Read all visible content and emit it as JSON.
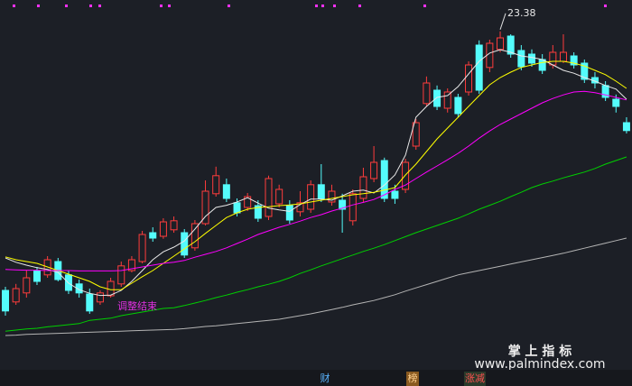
{
  "chart_data": {
    "type": "candlestick",
    "ylim": [
      13.55,
      24.25
    ],
    "up_color": "#ff3c3c",
    "down_color": "#54fcfc",
    "candles": {
      "open": [
        16.2,
        15.88,
        16.13,
        16.75,
        16.63,
        17.0,
        16.63,
        16.38,
        16.1,
        15.88,
        16.05,
        16.38,
        16.75,
        17.0,
        17.8,
        17.7,
        17.88,
        17.8,
        17.38,
        18.05,
        18.88,
        19.13,
        18.63,
        18.5,
        18.55,
        18.25,
        18.6,
        18.55,
        18.38,
        18.45,
        19.13,
        18.65,
        18.7,
        18.13,
        18.75,
        19.3,
        19.8,
        18.95,
        19.0,
        20.2,
        21.38,
        21.75,
        21.25,
        21.55,
        21.7,
        23.0,
        22.38,
        22.88,
        23.25,
        22.85,
        22.75,
        22.6,
        22.45,
        22.55,
        22.7,
        22.5,
        22.1,
        21.88,
        21.5,
        20.85
      ],
      "high": [
        16.3,
        16.38,
        16.75,
        16.85,
        17.15,
        17.1,
        16.75,
        16.5,
        16.25,
        16.2,
        16.55,
        17.0,
        17.15,
        17.85,
        17.95,
        18.2,
        18.25,
        17.9,
        18.15,
        19.25,
        19.63,
        19.3,
        18.75,
        18.9,
        18.7,
        19.38,
        19.13,
        18.7,
        18.95,
        19.25,
        19.7,
        19.13,
        18.88,
        19.0,
        19.6,
        20.2,
        19.88,
        19.13,
        19.85,
        20.95,
        22.13,
        21.88,
        21.8,
        21.65,
        22.55,
        23.13,
        23.15,
        23.38,
        23.3,
        23.0,
        22.88,
        22.75,
        23.0,
        23.3,
        22.8,
        22.6,
        22.25,
        22.0,
        21.63,
        21.0
      ],
      "low": [
        15.5,
        15.8,
        16.0,
        16.35,
        16.55,
        16.45,
        16.1,
        16.0,
        15.55,
        15.8,
        16.0,
        16.3,
        16.7,
        16.95,
        17.55,
        17.63,
        17.8,
        17.1,
        17.3,
        18.0,
        18.8,
        18.65,
        18.25,
        18.4,
        18.1,
        18.15,
        18.5,
        18.05,
        18.25,
        18.35,
        18.65,
        18.55,
        17.8,
        18.0,
        18.65,
        19.2,
        18.65,
        18.6,
        18.9,
        20.1,
        21.3,
        21.2,
        21.13,
        21.0,
        21.6,
        21.65,
        22.25,
        22.8,
        22.65,
        22.3,
        22.4,
        22.2,
        22.35,
        22.5,
        22.35,
        21.95,
        21.8,
        21.45,
        21.13,
        20.55
      ],
      "close": [
        15.63,
        16.25,
        16.55,
        16.45,
        17.05,
        16.5,
        16.2,
        16.13,
        15.63,
        16.13,
        16.45,
        16.88,
        17.05,
        17.75,
        17.65,
        18.1,
        18.13,
        17.18,
        18.05,
        18.95,
        19.38,
        18.75,
        18.35,
        18.8,
        18.2,
        19.3,
        19.0,
        18.15,
        18.63,
        19.13,
        18.75,
        18.95,
        18.45,
        18.88,
        19.35,
        19.75,
        18.75,
        18.75,
        19.75,
        20.85,
        21.95,
        21.3,
        21.7,
        21.1,
        22.45,
        21.75,
        23.05,
        23.2,
        22.75,
        22.4,
        22.5,
        22.3,
        22.8,
        22.8,
        22.45,
        22.05,
        21.95,
        21.55,
        21.3,
        20.63
      ],
      "high_labels": [
        null,
        null,
        null,
        null,
        null,
        null,
        null,
        null,
        null,
        null,
        null,
        null,
        null,
        null,
        null,
        null,
        null,
        null,
        null,
        null,
        null,
        null,
        null,
        null,
        null,
        null,
        null,
        null,
        null,
        null,
        null,
        null,
        null,
        null,
        null,
        null,
        null,
        null,
        null,
        null,
        null,
        null,
        null,
        null,
        null,
        null,
        null,
        "23.38",
        null,
        null,
        null,
        null,
        null,
        null,
        null,
        null,
        null,
        null,
        null,
        null
      ]
    },
    "series": [
      {
        "color": "#e8e8e8",
        "values": [
          17.1,
          16.98,
          16.9,
          16.83,
          16.78,
          16.7,
          16.4,
          16.22,
          16.12,
          16.06,
          16.07,
          16.2,
          16.45,
          16.75,
          17.05,
          17.27,
          17.4,
          17.57,
          17.9,
          18.25,
          18.5,
          18.56,
          18.65,
          18.77,
          18.62,
          18.48,
          18.43,
          18.39,
          18.58,
          18.73,
          18.73,
          18.7,
          18.82,
          18.95,
          18.98,
          18.9,
          19.12,
          19.4,
          19.95,
          21.0,
          21.3,
          21.55,
          21.6,
          21.85,
          22.2,
          22.55,
          22.78,
          22.87,
          22.8,
          22.7,
          22.66,
          22.6,
          22.45,
          22.3,
          22.22,
          22.1,
          22.0,
          21.88,
          21.78,
          21.5
        ]
      },
      {
        "color": "#ffff00",
        "values": [
          17.13,
          17.05,
          17.0,
          16.95,
          16.85,
          16.75,
          16.65,
          16.55,
          16.45,
          16.3,
          16.22,
          16.22,
          16.4,
          16.58,
          16.75,
          16.95,
          17.15,
          17.35,
          17.55,
          17.78,
          18.0,
          18.22,
          18.35,
          18.45,
          18.5,
          18.52,
          18.55,
          18.57,
          18.6,
          18.65,
          18.7,
          18.75,
          18.8,
          18.85,
          18.88,
          18.92,
          18.98,
          19.05,
          19.4,
          19.7,
          20.05,
          20.4,
          20.7,
          21.0,
          21.3,
          21.6,
          21.9,
          22.1,
          22.25,
          22.38,
          22.45,
          22.52,
          22.55,
          22.55,
          22.5,
          22.42,
          22.3,
          22.18,
          22.0,
          21.8
        ]
      },
      {
        "color": "#ff00ff",
        "values": [
          16.78,
          16.77,
          16.76,
          16.76,
          16.75,
          16.75,
          16.75,
          16.74,
          16.74,
          16.74,
          16.74,
          16.75,
          16.8,
          16.85,
          16.9,
          16.95,
          16.98,
          17.03,
          17.12,
          17.2,
          17.28,
          17.38,
          17.5,
          17.62,
          17.75,
          17.85,
          17.95,
          18.03,
          18.12,
          18.22,
          18.3,
          18.4,
          18.48,
          18.57,
          18.64,
          18.72,
          18.85,
          19.0,
          19.12,
          19.3,
          19.48,
          19.65,
          19.82,
          20.0,
          20.2,
          20.42,
          20.62,
          20.8,
          20.95,
          21.1,
          21.25,
          21.4,
          21.52,
          21.62,
          21.7,
          21.72,
          21.68,
          21.62,
          21.55,
          21.48
        ]
      },
      {
        "color": "#00d000",
        "values": [
          15.07,
          15.1,
          15.13,
          15.15,
          15.19,
          15.22,
          15.25,
          15.28,
          15.37,
          15.4,
          15.43,
          15.5,
          15.55,
          15.6,
          15.65,
          15.7,
          15.72,
          15.78,
          15.85,
          15.92,
          16.0,
          16.07,
          16.15,
          16.22,
          16.3,
          16.37,
          16.45,
          16.55,
          16.67,
          16.77,
          16.88,
          16.98,
          17.08,
          17.18,
          17.28,
          17.37,
          17.47,
          17.58,
          17.69,
          17.8,
          17.9,
          18.0,
          18.1,
          18.2,
          18.32,
          18.45,
          18.56,
          18.67,
          18.8,
          18.92,
          19.05,
          19.15,
          19.23,
          19.32,
          19.4,
          19.48,
          19.58,
          19.7,
          19.8,
          19.9
        ]
      },
      {
        "color": "#b4b4b4",
        "values": [
          14.95,
          14.96,
          14.98,
          14.99,
          15.0,
          15.01,
          15.02,
          15.03,
          15.04,
          15.05,
          15.06,
          15.07,
          15.08,
          15.09,
          15.1,
          15.11,
          15.12,
          15.14,
          15.17,
          15.2,
          15.22,
          15.25,
          15.28,
          15.31,
          15.34,
          15.37,
          15.4,
          15.45,
          15.5,
          15.55,
          15.61,
          15.67,
          15.73,
          15.8,
          15.86,
          15.92,
          16.0,
          16.08,
          16.18,
          16.27,
          16.36,
          16.45,
          16.54,
          16.63,
          16.69,
          16.75,
          16.81,
          16.87,
          16.93,
          16.99,
          17.05,
          17.11,
          17.17,
          17.23,
          17.3,
          17.37,
          17.44,
          17.51,
          17.58,
          17.65
        ]
      }
    ],
    "annotations": [
      {
        "text": "调整结束",
        "color": "#e030e0"
      }
    ]
  },
  "watermark": {
    "title": "掌 上 指 标",
    "url": "www.palmindex.com"
  },
  "footer_tabs": [
    "财",
    "榜",
    "涨减"
  ]
}
